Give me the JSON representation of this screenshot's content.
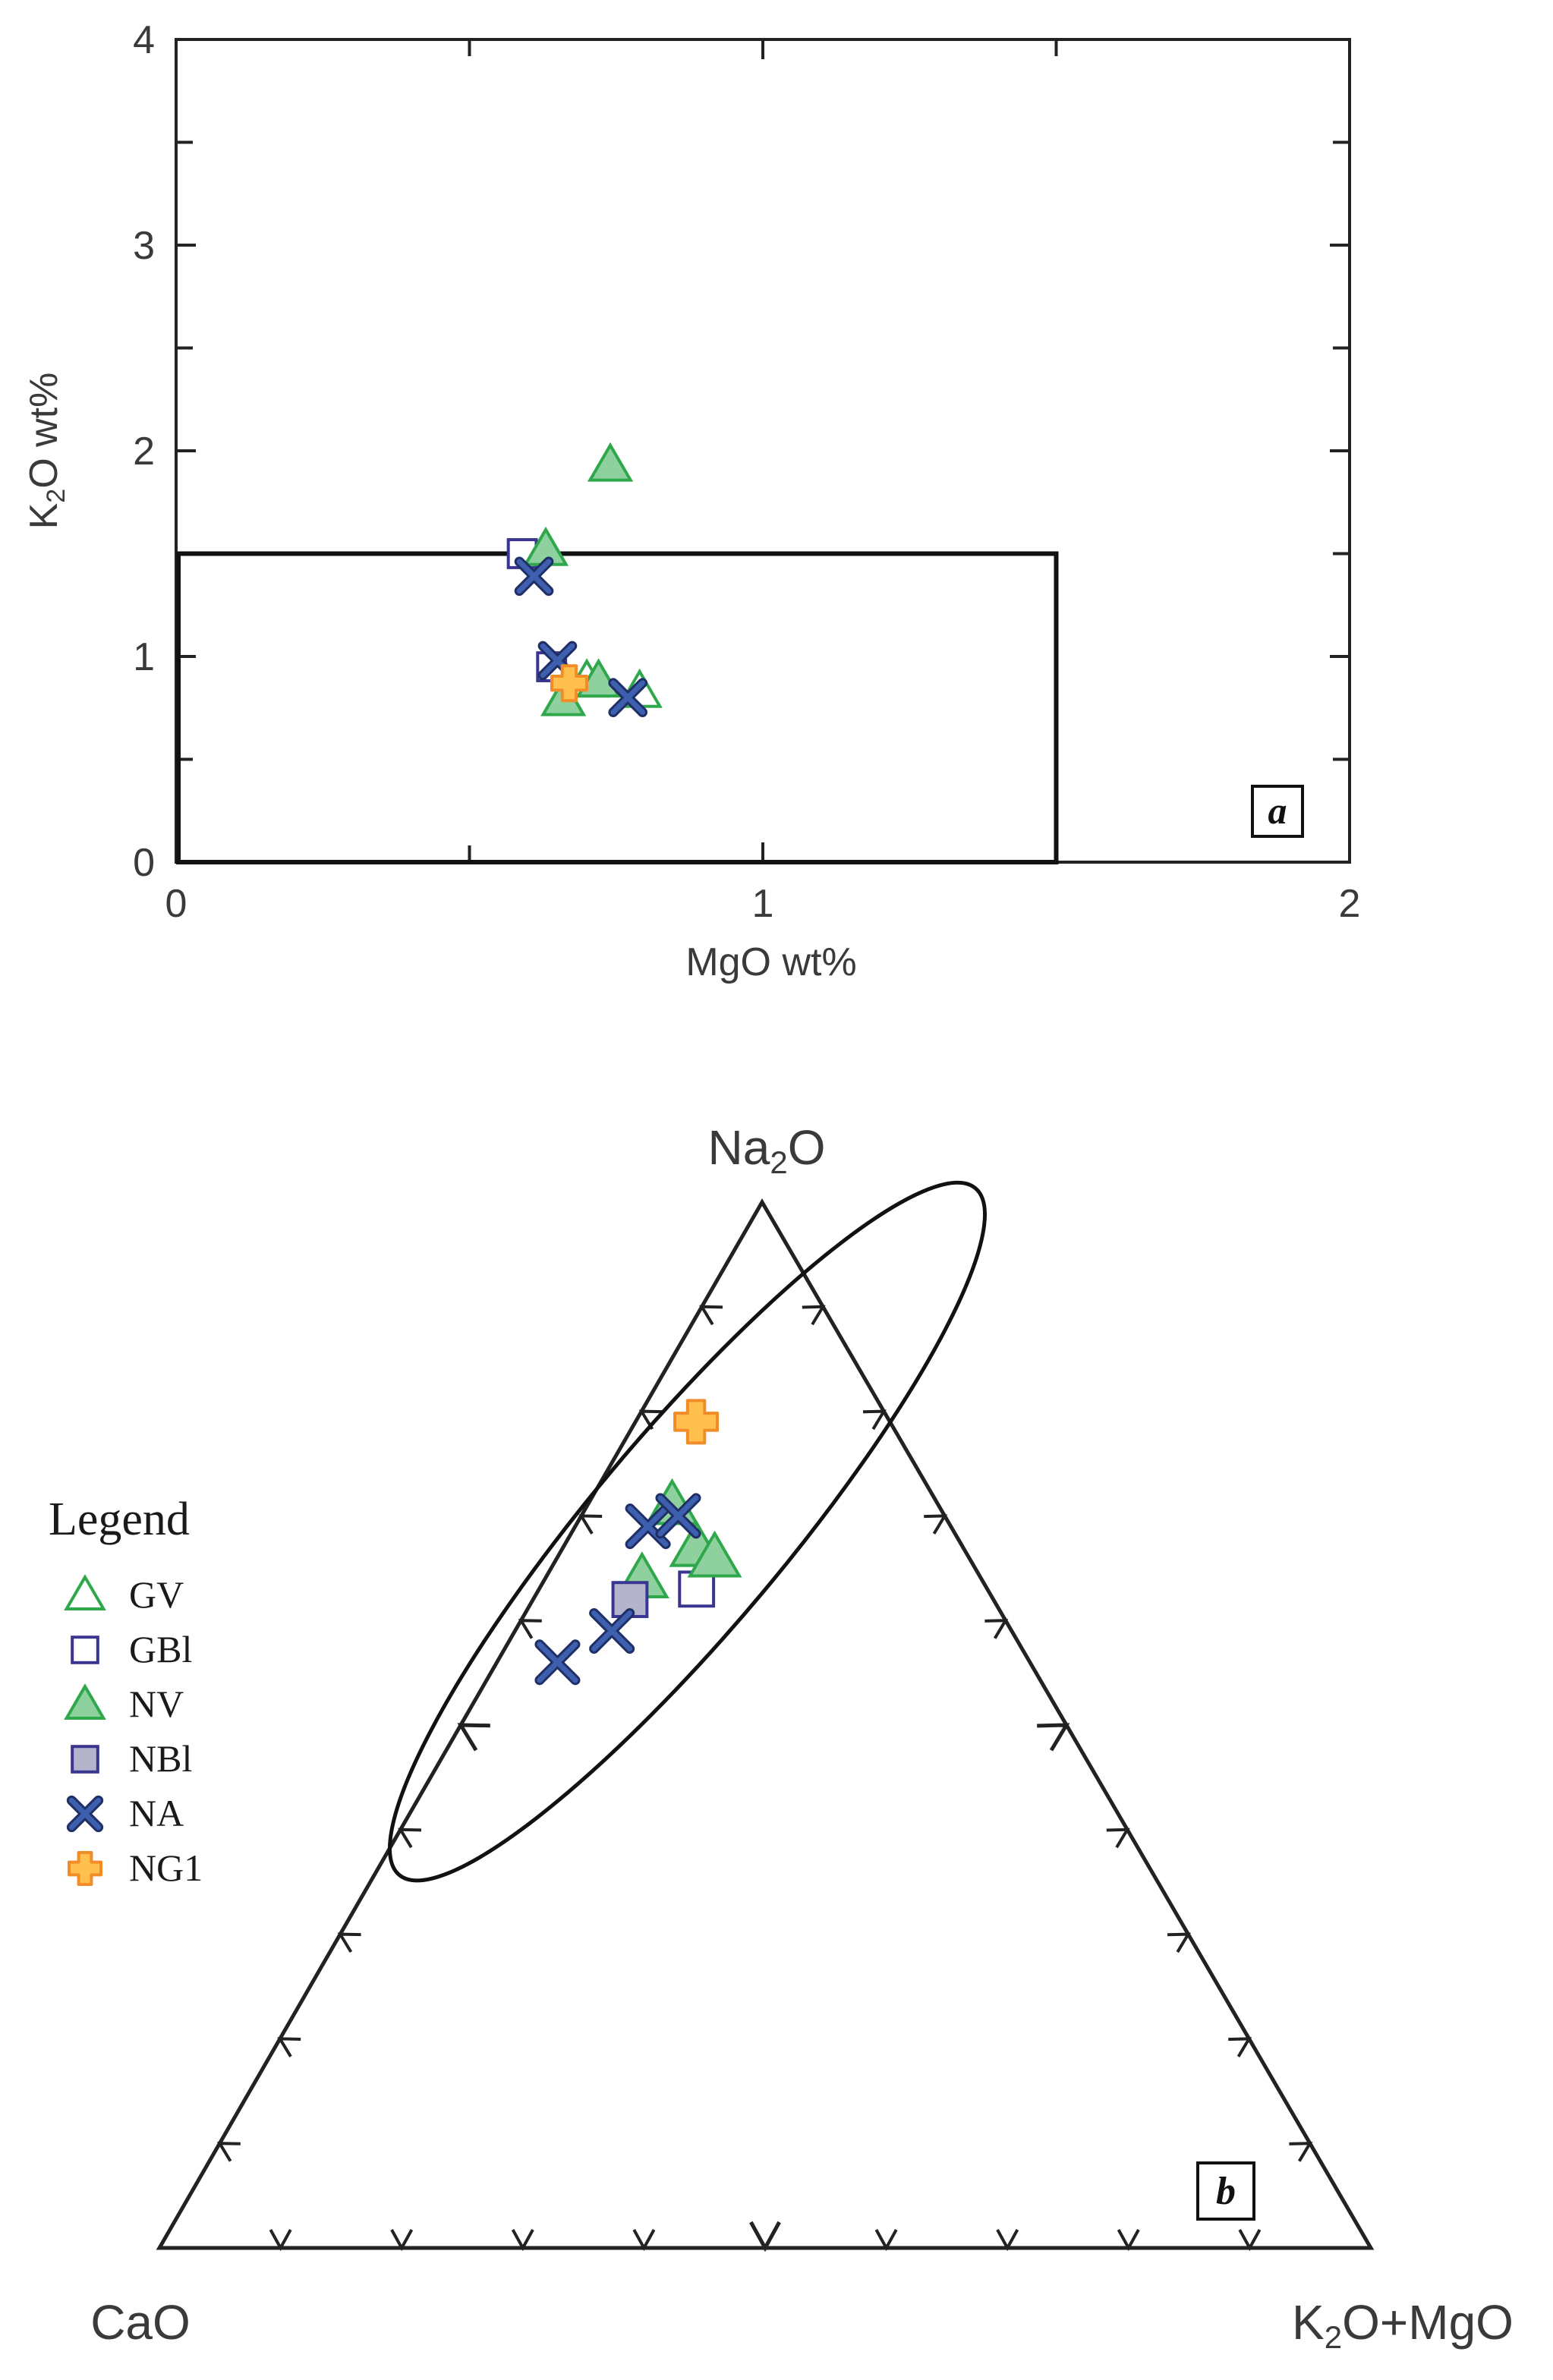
{
  "chart_data": [
    {
      "type": "scatter",
      "panel": "a",
      "xlabel": "MgO wt%",
      "ylabel": "K2O wt%",
      "ylabel_parts": {
        "base": "K",
        "sub": "2",
        "rest": "O wt%"
      },
      "xlim": [
        0,
        2
      ],
      "ylim": [
        0,
        4
      ],
      "x_ticks": [
        "0",
        "1",
        "2"
      ],
      "y_ticks": [
        "0",
        "1",
        "2",
        "3",
        "4"
      ],
      "field_box": {
        "x": [
          0,
          1.5
        ],
        "y": [
          0,
          1.5
        ]
      },
      "series": [
        {
          "name": "GV",
          "points": [
            {
              "x": 0.79,
              "y": 0.83
            },
            {
              "x": 0.7,
              "y": 0.88
            }
          ]
        },
        {
          "name": "GBl",
          "points": [
            {
              "x": 0.59,
              "y": 1.5
            },
            {
              "x": 0.64,
              "y": 0.95
            }
          ]
        },
        {
          "name": "NV",
          "points": [
            {
              "x": 0.74,
              "y": 1.93
            },
            {
              "x": 0.63,
              "y": 1.52
            },
            {
              "x": 0.66,
              "y": 0.79
            },
            {
              "x": 0.72,
              "y": 0.88
            }
          ]
        },
        {
          "name": "NA",
          "points": [
            {
              "x": 0.61,
              "y": 1.39
            },
            {
              "x": 0.65,
              "y": 0.98
            },
            {
              "x": 0.77,
              "y": 0.8
            }
          ]
        },
        {
          "name": "NG1",
          "points": [
            {
              "x": 0.67,
              "y": 0.87
            }
          ]
        }
      ]
    },
    {
      "type": "ternary",
      "panel": "b",
      "apices": {
        "top": {
          "base": "Na",
          "sub": "2",
          "rest": "O"
        },
        "left": "CaO",
        "right": {
          "base": "K",
          "sub": "2",
          "rest": "O+MgO"
        }
      },
      "tick_step": 10,
      "legend": {
        "title": "Legend",
        "entries": [
          "GV",
          "GBl",
          "NV",
          "NBl",
          "NA",
          "NG1"
        ]
      },
      "series": [
        {
          "name": "GV",
          "points": [
            {
              "Na2O": 0.67,
              "CaO": 0.22,
              "K2OMgO": 0.11
            }
          ]
        },
        {
          "name": "GBl",
          "points": [
            {
              "Na2O": 0.63,
              "CaO": 0.24,
              "K2OMgO": 0.13
            }
          ]
        },
        {
          "name": "NV",
          "points": [
            {
              "Na2O": 0.71,
              "CaO": 0.22,
              "K2OMgO": 0.07
            },
            {
              "Na2O": 0.67,
              "CaO": 0.22,
              "K2OMgO": 0.11
            },
            {
              "Na2O": 0.66,
              "CaO": 0.21,
              "K2OMgO": 0.13
            },
            {
              "Na2O": 0.64,
              "CaO": 0.28,
              "K2OMgO": 0.08
            }
          ]
        },
        {
          "name": "NBl",
          "points": [
            {
              "Na2O": 0.62,
              "CaO": 0.3,
              "K2OMgO": 0.08
            }
          ]
        },
        {
          "name": "NA",
          "points": [
            {
              "Na2O": 0.69,
              "CaO": 0.25,
              "K2OMgO": 0.06
            },
            {
              "Na2O": 0.7,
              "CaO": 0.22,
              "K2OMgO": 0.08
            },
            {
              "Na2O": 0.59,
              "CaO": 0.33,
              "K2OMgO": 0.08
            },
            {
              "Na2O": 0.56,
              "CaO": 0.39,
              "K2OMgO": 0.05
            }
          ]
        },
        {
          "name": "NG1",
          "points": [
            {
              "Na2O": 0.79,
              "CaO": 0.16,
              "K2OMgO": 0.05
            }
          ]
        }
      ],
      "field_ellipse": {
        "center": {
          "Na2O": 0.685,
          "CaO": 0.22,
          "K2OMgO": 0.095
        },
        "long_axis_pct": 37,
        "short_axis_pct": 8
      }
    }
  ],
  "colors": {
    "GV": "#2ea84a",
    "GBl": "#3a3591",
    "NV_fill": "#8fd19e",
    "NV_edge": "#2ea84a",
    "NBl_fill": "#b4b4cc",
    "NBl_edge": "#3a3591",
    "NA": "#3d5fae",
    "NG1_fill": "#ffc04d",
    "NG1_edge": "#f28c28",
    "axis": "#222222"
  }
}
